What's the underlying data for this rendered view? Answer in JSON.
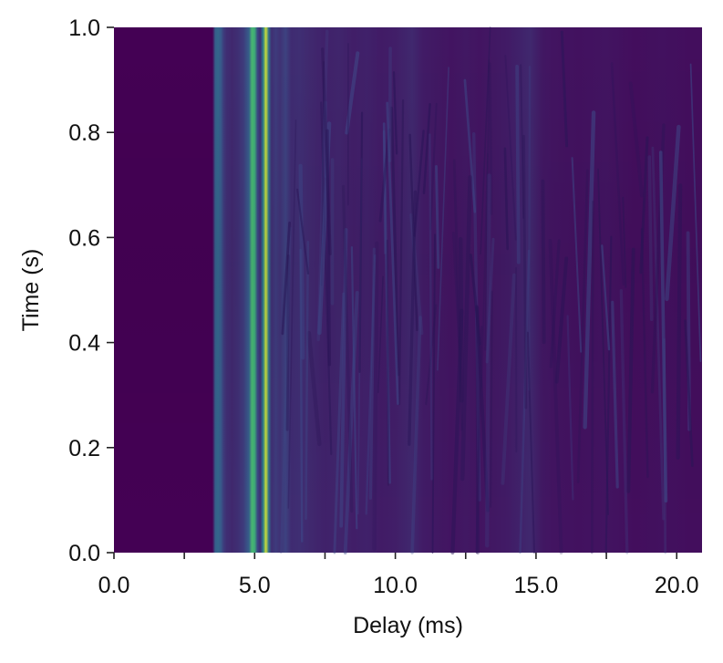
{
  "chart_data": {
    "type": "heatmap",
    "title": "",
    "xlabel": "Delay (ms)",
    "ylabel": "Time (s)",
    "xlim": [
      0.0,
      20.9
    ],
    "ylim": [
      0.0,
      1.0
    ],
    "x_ticks": [
      0.0,
      2.5,
      5.0,
      7.5,
      10.0,
      12.5,
      15.0,
      17.5,
      20.0
    ],
    "x_tick_labels": [
      "0.0",
      "",
      "5.0",
      "",
      "10.0",
      "",
      "15.0",
      "",
      "20.0"
    ],
    "y_ticks": [
      0.0,
      0.2,
      0.4,
      0.6,
      0.8,
      1.0
    ],
    "y_tick_labels": [
      "0.0",
      "0.2",
      "0.4",
      "0.6",
      "0.8",
      "1.0"
    ],
    "colormap": "viridis",
    "grid": false,
    "legend": "none",
    "delay_profile": {
      "delay_ms": [
        0.0,
        3.5,
        3.6,
        3.7,
        3.8,
        3.9,
        4.0,
        4.2,
        4.4,
        4.6,
        4.8,
        4.9,
        5.0,
        5.1,
        5.2,
        5.3,
        5.4,
        5.5,
        5.6,
        5.75,
        5.9,
        6.1,
        6.3,
        6.6,
        7.0,
        7.5,
        8.0,
        8.5,
        9.0,
        9.5,
        10.0,
        10.6,
        11.0,
        11.5,
        12.0,
        12.5,
        13.0,
        13.5,
        14.0,
        14.4,
        14.8,
        15.2,
        15.6,
        16.5,
        17.5,
        18.5,
        19.5,
        20.5,
        20.9
      ],
      "intensity": [
        0.0,
        0.0,
        0.3,
        0.33,
        0.28,
        0.18,
        0.14,
        0.12,
        0.14,
        0.18,
        0.3,
        0.66,
        0.62,
        0.22,
        0.14,
        0.42,
        0.92,
        0.36,
        0.14,
        0.18,
        0.15,
        0.2,
        0.13,
        0.14,
        0.12,
        0.1,
        0.11,
        0.09,
        0.1,
        0.08,
        0.09,
        0.12,
        0.08,
        0.07,
        0.06,
        0.07,
        0.06,
        0.07,
        0.08,
        0.1,
        0.12,
        0.07,
        0.06,
        0.05,
        0.06,
        0.04,
        0.05,
        0.04,
        0.04
      ]
    }
  }
}
